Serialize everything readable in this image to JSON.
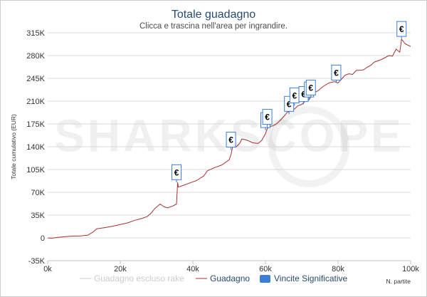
{
  "chart_data": {
    "type": "line",
    "title": "Totale guadagno",
    "subtitle": "Clicca e trascina nell'area per ingrandire.",
    "ylabel": "Totale cumulativo (EUR)",
    "xlabel": "N. partite",
    "xlim": [
      0,
      100000
    ],
    "ylim": [
      -35000,
      315000
    ],
    "x_ticks": [
      {
        "value": 0,
        "label": "0k"
      },
      {
        "value": 20000,
        "label": "20k"
      },
      {
        "value": 40000,
        "label": "40k"
      },
      {
        "value": 60000,
        "label": "60k"
      },
      {
        "value": 80000,
        "label": "80k"
      },
      {
        "value": 100000,
        "label": "100k"
      }
    ],
    "y_ticks": [
      {
        "value": -35000,
        "label": "-35K"
      },
      {
        "value": 0,
        "label": "0"
      },
      {
        "value": 35000,
        "label": "35K"
      },
      {
        "value": 70000,
        "label": "70K"
      },
      {
        "value": 105000,
        "label": "105K"
      },
      {
        "value": 140000,
        "label": "140K"
      },
      {
        "value": 175000,
        "label": "175K"
      },
      {
        "value": 210000,
        "label": "210K"
      },
      {
        "value": 245000,
        "label": "245K"
      },
      {
        "value": 280000,
        "label": "280K"
      },
      {
        "value": 315000,
        "label": "315K"
      }
    ],
    "grid": true,
    "watermark": "SHARKSCOPE",
    "legend_position": "bottom",
    "series": [
      {
        "name": "Guadagno escluso rake",
        "color": "#cccccc",
        "visible": false,
        "points": []
      },
      {
        "name": "Guadagno",
        "color": "#a83030",
        "visible": true,
        "points": [
          [
            0,
            0
          ],
          [
            1000,
            -500
          ],
          [
            3000,
            1000
          ],
          [
            6000,
            2500
          ],
          [
            9000,
            3000
          ],
          [
            11000,
            4000
          ],
          [
            12500,
            9000
          ],
          [
            13500,
            14000
          ],
          [
            16000,
            16000
          ],
          [
            18000,
            18000
          ],
          [
            20000,
            20500
          ],
          [
            22000,
            23000
          ],
          [
            24000,
            27000
          ],
          [
            26000,
            30000
          ],
          [
            27500,
            33000
          ],
          [
            28500,
            38000
          ],
          [
            29500,
            45000
          ],
          [
            31000,
            52000
          ],
          [
            32000,
            48000
          ],
          [
            33000,
            46000
          ],
          [
            34500,
            49000
          ],
          [
            35500,
            52000
          ],
          [
            35800,
            85000
          ],
          [
            36000,
            78000
          ],
          [
            37000,
            80000
          ],
          [
            39000,
            84000
          ],
          [
            41000,
            88000
          ],
          [
            43000,
            95000
          ],
          [
            44000,
            103000
          ],
          [
            46000,
            108000
          ],
          [
            48000,
            112000
          ],
          [
            50000,
            120000
          ],
          [
            50500,
            128000
          ],
          [
            51000,
            141000
          ],
          [
            52000,
            140000
          ],
          [
            53000,
            146000
          ],
          [
            53500,
            152000
          ],
          [
            55000,
            150000
          ],
          [
            56500,
            146000
          ],
          [
            58000,
            145000
          ],
          [
            59000,
            150000
          ],
          [
            60000,
            160000
          ],
          [
            60500,
            168000
          ],
          [
            61000,
            171000
          ],
          [
            62000,
            172000
          ],
          [
            63000,
            175000
          ],
          [
            64000,
            180000
          ],
          [
            65000,
            186000
          ],
          [
            66000,
            193000
          ],
          [
            67000,
            195000
          ],
          [
            68000,
            198000
          ],
          [
            69000,
            203000
          ],
          [
            70000,
            205000
          ],
          [
            71000,
            210000
          ],
          [
            72000,
            212000
          ],
          [
            73000,
            222000
          ],
          [
            74500,
            226000
          ],
          [
            76000,
            233000
          ],
          [
            77500,
            238000
          ],
          [
            79000,
            240000
          ],
          [
            80000,
            238000
          ],
          [
            81000,
            244000
          ],
          [
            82000,
            250000
          ],
          [
            83000,
            252000
          ],
          [
            84000,
            251000
          ],
          [
            85000,
            257000
          ],
          [
            87000,
            258000
          ],
          [
            88000,
            262000
          ],
          [
            89000,
            265000
          ],
          [
            90000,
            270000
          ],
          [
            92000,
            274000
          ],
          [
            94000,
            280000
          ],
          [
            95000,
            279000
          ],
          [
            96000,
            290000
          ],
          [
            97000,
            285000
          ],
          [
            97500,
            305000
          ],
          [
            98500,
            298000
          ],
          [
            100000,
            294000
          ]
        ]
      },
      {
        "name": "Vincite Significative",
        "color": "#3a7fd5",
        "visible": true,
        "markers": [
          {
            "x": 35500,
            "y": 85000,
            "label": "€"
          },
          {
            "x": 50500,
            "y": 135000,
            "label": "€"
          },
          {
            "x": 60000,
            "y": 165000,
            "label": "€"
          },
          {
            "x": 60500,
            "y": 170000,
            "label": "€"
          },
          {
            "x": 66500,
            "y": 190000,
            "label": "€"
          },
          {
            "x": 68000,
            "y": 203000,
            "label": "€"
          },
          {
            "x": 70500,
            "y": 205000,
            "label": "€"
          },
          {
            "x": 72000,
            "y": 212000,
            "label": "€"
          },
          {
            "x": 72500,
            "y": 215000,
            "label": "€"
          },
          {
            "x": 79500,
            "y": 238000,
            "label": "€"
          },
          {
            "x": 97500,
            "y": 305000,
            "label": "€"
          }
        ]
      }
    ]
  }
}
